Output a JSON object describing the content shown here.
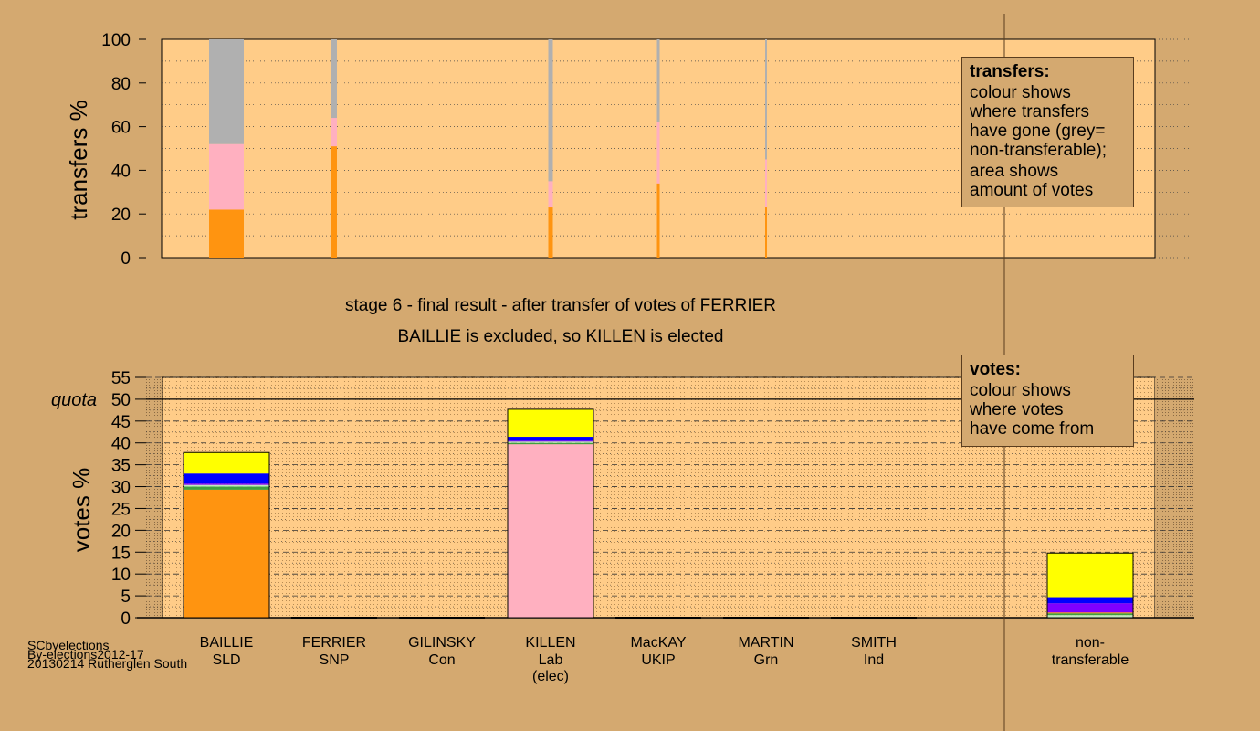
{
  "chart_data": [
    {
      "type": "bar",
      "name": "transfers",
      "ylabel": "transfers %",
      "ylim": [
        0,
        100
      ],
      "yticks": [
        0,
        20,
        40,
        60,
        80,
        100
      ],
      "grid": true,
      "categories": [
        "BAILLIE",
        "FERRIER",
        "GILINSKY",
        "KILLEN",
        "MacKAY",
        "MARTIN",
        "SMITH"
      ],
      "series": [
        {
          "color": "#ff9410",
          "values": [
            22,
            51,
            null,
            23,
            34,
            23,
            null
          ]
        },
        {
          "color": "#ffb0c0",
          "values": [
            30,
            13,
            null,
            12,
            28,
            22,
            null
          ]
        },
        {
          "color": "#b0b0b0",
          "values": [
            48,
            36,
            null,
            65,
            38,
            55,
            null
          ]
        }
      ],
      "legend": {
        "title": "transfers:",
        "lines": [
          "colour shows",
          "where transfers",
          "have gone (grey=",
          "non-transferable);",
          "area shows",
          "amount of votes"
        ]
      }
    },
    {
      "type": "bar",
      "name": "votes",
      "ylabel": "votes %",
      "ylim": [
        0,
        55
      ],
      "yticks": [
        0,
        5,
        10,
        15,
        20,
        25,
        30,
        35,
        40,
        45,
        50,
        55
      ],
      "quota": 50,
      "quota_label": "quota",
      "grid": true,
      "categories": [
        "BAILLIE",
        "FERRIER",
        "GILINSKY",
        "KILLEN",
        "MacKAY",
        "MARTIN",
        "SMITH",
        "non-transferable"
      ],
      "stacks": [
        [
          {
            "color": "#ff9410",
            "value": 29.3
          },
          {
            "color": "#40a040",
            "value": 0.7
          },
          {
            "color": "#c0e8c0",
            "value": 0.4
          },
          {
            "color": "#8000ff",
            "value": 0.3
          },
          {
            "color": "#0000ff",
            "value": 2.3
          },
          {
            "color": "#ffff00",
            "value": 4.8
          }
        ],
        [],
        [],
        [
          {
            "color": "#ffb0c0",
            "value": 39.7
          },
          {
            "color": "#40a040",
            "value": 0.3
          },
          {
            "color": "#c0e8c0",
            "value": 0.3
          },
          {
            "color": "#8000ff",
            "value": 0.2
          },
          {
            "color": "#0000ff",
            "value": 0.9
          },
          {
            "color": "#ffff00",
            "value": 6.3
          }
        ],
        [],
        [],
        [],
        [
          {
            "color": "#c0e8c0",
            "value": 0.6
          },
          {
            "color": "#40a040",
            "value": 0.4
          },
          {
            "color": "#ff9410",
            "value": 0.2
          },
          {
            "color": "#8000ff",
            "value": 2.1
          },
          {
            "color": "#0000ff",
            "value": 1.4
          },
          {
            "color": "#ffff00",
            "value": 10.1
          }
        ]
      ],
      "legend": {
        "title": "votes:",
        "lines": [
          "colour shows",
          "where votes",
          "have come from"
        ]
      }
    }
  ],
  "candidates": [
    {
      "name": "BAILLIE",
      "party": "SLD",
      "note": ""
    },
    {
      "name": "FERRIER",
      "party": "SNP",
      "note": ""
    },
    {
      "name": "GILINSKY",
      "party": "Con",
      "note": ""
    },
    {
      "name": "KILLEN",
      "party": "Lab",
      "note": "(elec)"
    },
    {
      "name": "MacKAY",
      "party": "UKIP",
      "note": ""
    },
    {
      "name": "MARTIN",
      "party": "Grn",
      "note": ""
    },
    {
      "name": "SMITH",
      "party": "Ind",
      "note": ""
    }
  ],
  "non_transferable_label": [
    "non-",
    "transferable"
  ],
  "caption": {
    "line1": "stage 6 - final result - after transfer of votes of FERRIER",
    "line2": "BAILLIE is excluded, so KILLEN is elected"
  },
  "footer": [
    "SCbyelections",
    "By-elections2012-17",
    "20130214 Rutherglen South"
  ],
  "colors": {
    "background": "#d4a970",
    "plot_area": "#ffcc88"
  }
}
